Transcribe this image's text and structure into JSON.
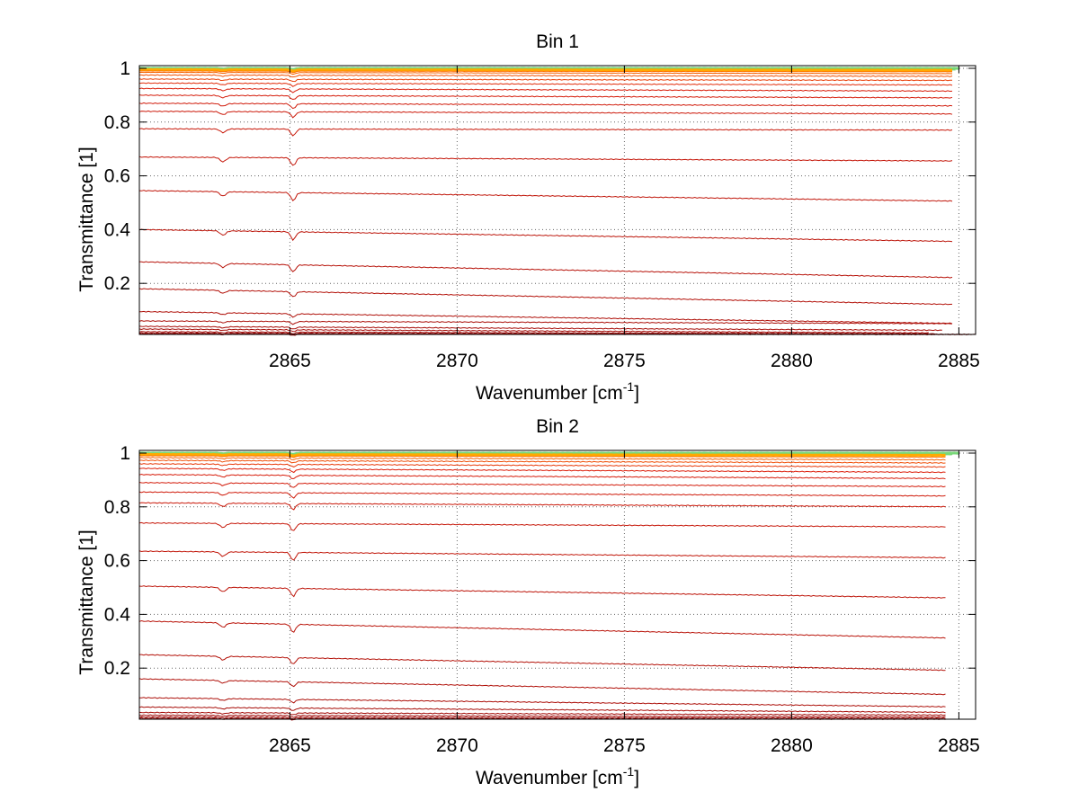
{
  "chart_data": [
    {
      "type": "line",
      "title": "Bin 1",
      "xlabel": "Wavenumber [cm",
      "xlabel_sup": "-1",
      "xlabel_end": "]",
      "ylabel": "Transmittance [1]",
      "xlim": [
        2860.5,
        2885.5
      ],
      "ylim": [
        0.01,
        1.01
      ],
      "xticks": [
        2865,
        2870,
        2875,
        2880,
        2885
      ],
      "yticks": [
        0.2,
        0.4,
        0.6,
        0.8,
        1
      ],
      "xtick_labels": [
        "2865",
        "2870",
        "2875",
        "2880",
        "2885"
      ],
      "ytick_labels": [
        "0.2",
        "0.4",
        "0.6",
        "0.8",
        "1"
      ],
      "grid": true,
      "dip_centers": [
        2863.0,
        2865.1
      ],
      "series_x_end": [
        2885.0,
        2884.9,
        2884.8,
        2884.8,
        2884.8,
        2884.8,
        2884.8,
        2884.8,
        2884.8,
        2884.8,
        2884.8,
        2884.8,
        2884.8,
        2884.8,
        2884.8,
        2884.8,
        2884.8,
        2884.8,
        2884.8,
        2884.8,
        2884.5,
        2884.1,
        2884.3,
        2885.3,
        2885.5
      ],
      "series_start": [
        1.0,
        0.998,
        0.995,
        0.99,
        0.985,
        0.975,
        0.96,
        0.945,
        0.925,
        0.9,
        0.87,
        0.84,
        0.775,
        0.67,
        0.545,
        0.4,
        0.28,
        0.18,
        0.095,
        0.06,
        0.04,
        0.03,
        0.02,
        0.015,
        0.012
      ],
      "series_end": [
        1.0,
        0.997,
        0.993,
        0.987,
        0.98,
        0.97,
        0.955,
        0.938,
        0.915,
        0.89,
        0.86,
        0.83,
        0.77,
        0.655,
        0.505,
        0.355,
        0.22,
        0.12,
        0.05,
        0.05,
        0.025,
        0.015,
        0.012,
        0.01,
        0.01
      ]
    },
    {
      "type": "line",
      "title": "Bin 2",
      "xlabel": "Wavenumber [cm",
      "xlabel_sup": "-1",
      "xlabel_end": "]",
      "ylabel": "Transmittance [1]",
      "xlim": [
        2860.5,
        2885.5
      ],
      "ylim": [
        0.01,
        1.01
      ],
      "xticks": [
        2865,
        2870,
        2875,
        2880,
        2885
      ],
      "yticks": [
        0.2,
        0.4,
        0.6,
        0.8,
        1
      ],
      "xtick_labels": [
        "2865",
        "2870",
        "2875",
        "2880",
        "2885"
      ],
      "ytick_labels": [
        "0.2",
        "0.4",
        "0.6",
        "0.8",
        "1"
      ],
      "grid": true,
      "dip_centers": [
        2863.0,
        2865.1
      ],
      "series_x_end": [
        2885.0,
        2884.8,
        2884.6,
        2884.6,
        2884.6,
        2884.6,
        2884.6,
        2884.6,
        2884.6,
        2884.6,
        2884.6,
        2884.6,
        2884.6,
        2884.6,
        2884.6,
        2884.6,
        2884.6,
        2884.6,
        2884.6,
        2884.6,
        2884.6,
        2884.6,
        2884.6,
        2884.6
      ],
      "series_start": [
        1.0,
        0.998,
        0.995,
        0.99,
        0.983,
        0.973,
        0.96,
        0.943,
        0.92,
        0.89,
        0.855,
        0.815,
        0.74,
        0.635,
        0.505,
        0.375,
        0.25,
        0.16,
        0.09,
        0.055,
        0.035,
        0.025,
        0.018,
        0.013
      ],
      "series_end": [
        1.0,
        0.997,
        0.992,
        0.985,
        0.975,
        0.963,
        0.948,
        0.928,
        0.905,
        0.875,
        0.84,
        0.8,
        0.725,
        0.61,
        0.46,
        0.31,
        0.19,
        0.1,
        0.055,
        0.035,
        0.025,
        0.018,
        0.013,
        0.01
      ]
    }
  ]
}
